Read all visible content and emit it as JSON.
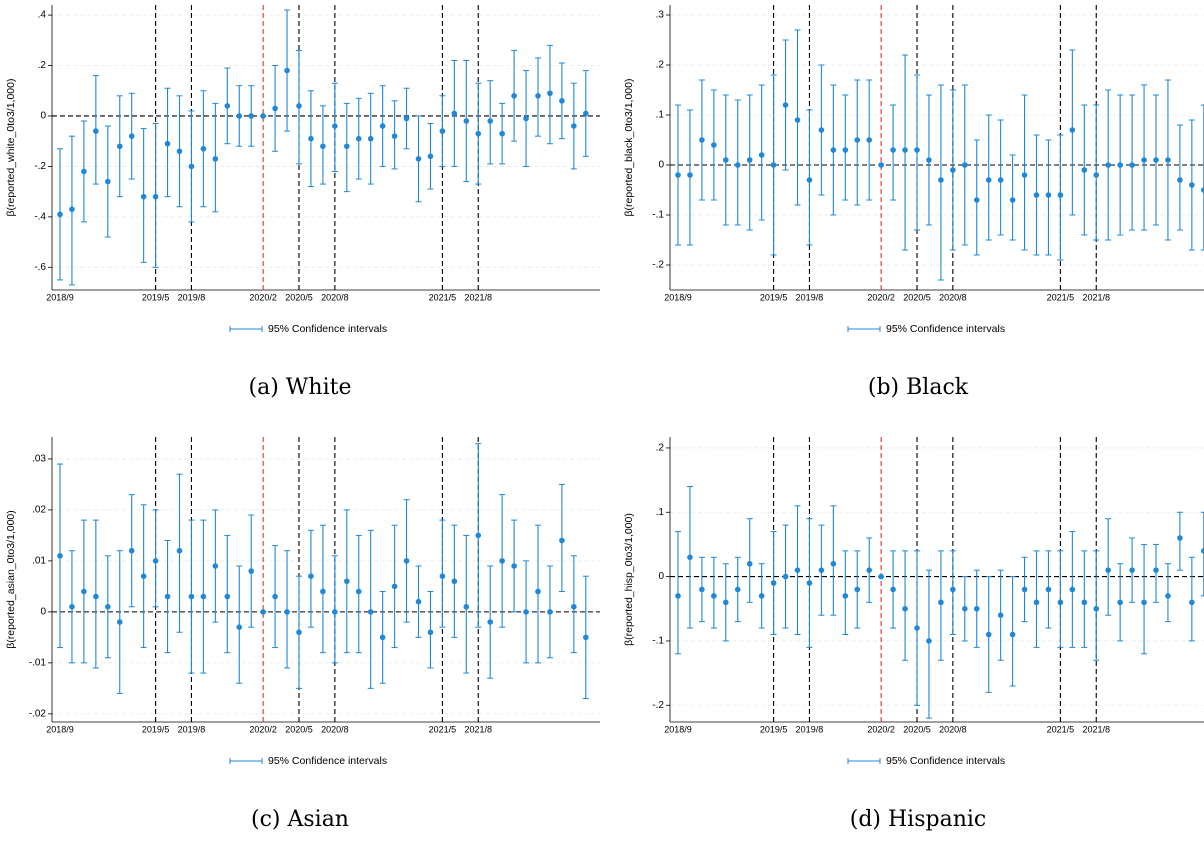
{
  "chart_data": [
    {
      "type": "errorbar",
      "caption": "(a) White",
      "y_label": "β(reported_white_0to3/1,000)",
      "categories": [
        "2018/9",
        null,
        null,
        null,
        null,
        null,
        null,
        null,
        "2019/5",
        null,
        null,
        "2019/8",
        null,
        null,
        null,
        null,
        null,
        "2020/2",
        null,
        null,
        "2020/5",
        null,
        null,
        "2020/8",
        null,
        null,
        null,
        null,
        null,
        null,
        null,
        null,
        "2021/5",
        null,
        null,
        "2021/8",
        null,
        null,
        null,
        null,
        null,
        null,
        null,
        null,
        null
      ],
      "series": [
        {
          "name": "95% Confidence intervals",
          "color": "#1f88d8",
          "values": [
            -0.39,
            -0.37,
            -0.22,
            -0.06,
            -0.26,
            -0.12,
            -0.08,
            -0.32,
            -0.32,
            -0.11,
            -0.14,
            -0.2,
            -0.13,
            -0.17,
            0.04,
            0,
            0,
            0,
            0.03,
            0.18,
            0.04,
            -0.09,
            -0.12,
            -0.04,
            -0.12,
            -0.09,
            -0.09,
            -0.04,
            -0.08,
            -0.01,
            -0.17,
            -0.16,
            -0.06,
            0.01,
            -0.02,
            -0.07,
            -0.02,
            -0.07,
            0.08,
            -0.01,
            0.08,
            0.09,
            0.06,
            -0.04,
            0.01
          ],
          "lower": [
            -0.65,
            -0.67,
            -0.42,
            -0.27,
            -0.48,
            -0.32,
            -0.25,
            -0.58,
            -0.6,
            -0.32,
            -0.36,
            -0.42,
            -0.36,
            -0.38,
            -0.11,
            -0.12,
            -0.12,
            0,
            -0.14,
            -0.06,
            -0.19,
            -0.28,
            -0.27,
            -0.22,
            -0.3,
            -0.25,
            -0.27,
            -0.2,
            -0.21,
            -0.13,
            -0.34,
            -0.29,
            -0.2,
            -0.2,
            -0.26,
            -0.27,
            -0.19,
            -0.19,
            -0.1,
            -0.2,
            -0.08,
            -0.11,
            -0.09,
            -0.21,
            -0.16
          ],
          "upper": [
            -0.13,
            -0.08,
            -0.02,
            0.16,
            -0.04,
            0.08,
            0.09,
            -0.05,
            -0.03,
            0.11,
            0.08,
            0.02,
            0.1,
            0.05,
            0.19,
            0.12,
            0.12,
            0,
            0.2,
            0.42,
            0.26,
            0.1,
            0.04,
            0.13,
            0.05,
            0.07,
            0.09,
            0.12,
            0.06,
            0.11,
            0,
            -0.03,
            0.08,
            0.22,
            0.22,
            0.13,
            0.14,
            0.05,
            0.26,
            0.18,
            0.23,
            0.28,
            0.21,
            0.13,
            0.18
          ]
        }
      ],
      "ylim": [
        -0.69,
        0.44
      ],
      "yticks": [
        {
          "value": -0.6,
          "label": "-.6"
        },
        {
          "value": -0.4,
          "label": "-.4"
        },
        {
          "value": -0.2,
          "label": "-.2"
        },
        0,
        {
          "value": 0.2,
          "label": ".2"
        },
        {
          "value": 0.4,
          "label": ".4"
        }
      ],
      "grid": true,
      "zero_line": true,
      "reference_lines": [
        {
          "x": "2019/5",
          "color": "#000000"
        },
        {
          "x": "2019/8",
          "color": "#000000"
        },
        {
          "x": "2020/2",
          "color": "#e3302b"
        },
        {
          "x": "2020/5",
          "color": "#000000"
        },
        {
          "x": "2020/8",
          "color": "#000000"
        },
        {
          "x": "2021/5",
          "color": "#000000"
        },
        {
          "x": "2021/8",
          "color": "#000000"
        }
      ]
    },
    {
      "type": "errorbar",
      "caption": "(b) Black",
      "y_label": "β(reported_black_0to3/1,000)",
      "categories": [
        "2018/9",
        null,
        null,
        null,
        null,
        null,
        null,
        null,
        "2019/5",
        null,
        null,
        "2019/8",
        null,
        null,
        null,
        null,
        null,
        "2020/2",
        null,
        null,
        "2020/5",
        null,
        null,
        "2020/8",
        null,
        null,
        null,
        null,
        null,
        null,
        null,
        null,
        "2021/5",
        null,
        null,
        "2021/8",
        null,
        null,
        null,
        null,
        null,
        null,
        null,
        null,
        null
      ],
      "series": [
        {
          "name": "95% Confidence intervals",
          "color": "#1f88d8",
          "values": [
            -0.02,
            -0.02,
            0.05,
            0.04,
            0.01,
            0,
            0.01,
            0.02,
            0,
            0.12,
            0.09,
            -0.03,
            0.07,
            0.03,
            0.03,
            0.05,
            0.05,
            0,
            0.03,
            0.03,
            0.03,
            0.01,
            -0.03,
            -0.01,
            0,
            -0.07,
            -0.03,
            -0.03,
            -0.07,
            -0.02,
            -0.06,
            -0.06,
            -0.06,
            0.07,
            -0.01,
            -0.02,
            0,
            0,
            0,
            0.01,
            0.01,
            0.01,
            -0.03,
            -0.04,
            -0.05
          ],
          "lower": [
            -0.16,
            -0.16,
            -0.07,
            -0.07,
            -0.12,
            -0.12,
            -0.13,
            -0.11,
            -0.18,
            -0.01,
            -0.08,
            -0.16,
            -0.06,
            -0.1,
            -0.07,
            -0.08,
            -0.07,
            0,
            -0.07,
            -0.17,
            -0.13,
            -0.12,
            -0.23,
            -0.17,
            -0.16,
            -0.18,
            -0.15,
            -0.14,
            -0.15,
            -0.17,
            -0.18,
            -0.18,
            -0.19,
            -0.1,
            -0.14,
            -0.15,
            -0.15,
            -0.14,
            -0.13,
            -0.13,
            -0.12,
            -0.15,
            -0.13,
            -0.17,
            -0.17
          ],
          "upper": [
            0.12,
            0.11,
            0.17,
            0.15,
            0.14,
            0.13,
            0.14,
            0.16,
            0.18,
            0.25,
            0.27,
            0.11,
            0.2,
            0.16,
            0.14,
            0.17,
            0.17,
            0,
            0.12,
            0.22,
            0.18,
            0.14,
            0.16,
            0.15,
            0.16,
            0.05,
            0.1,
            0.09,
            0.02,
            0.14,
            0.06,
            0.05,
            0.06,
            0.23,
            0.12,
            0.12,
            0.15,
            0.14,
            0.14,
            0.16,
            0.14,
            0.17,
            0.08,
            0.09,
            0.12
          ]
        }
      ],
      "ylim": [
        -0.25,
        0.32
      ],
      "yticks": [
        {
          "value": -0.2,
          "label": "-.2"
        },
        {
          "value": -0.1,
          "label": "-.1"
        },
        0,
        {
          "value": 0.1,
          "label": ".1"
        },
        {
          "value": 0.2,
          "label": ".2"
        },
        {
          "value": 0.3,
          "label": ".3"
        }
      ],
      "grid": true,
      "zero_line": true,
      "reference_lines": [
        {
          "x": "2019/5",
          "color": "#000000"
        },
        {
          "x": "2019/8",
          "color": "#000000"
        },
        {
          "x": "2020/2",
          "color": "#e3302b"
        },
        {
          "x": "2020/5",
          "color": "#000000"
        },
        {
          "x": "2020/8",
          "color": "#000000"
        },
        {
          "x": "2021/5",
          "color": "#000000"
        },
        {
          "x": "2021/8",
          "color": "#000000"
        }
      ]
    },
    {
      "type": "errorbar",
      "caption": "(c) Asian",
      "y_label": "β(reported_asian_0to3/1,000)",
      "categories": [
        "2018/9",
        null,
        null,
        null,
        null,
        null,
        null,
        null,
        "2019/5",
        null,
        null,
        "2019/8",
        null,
        null,
        null,
        null,
        null,
        "2020/2",
        null,
        null,
        "2020/5",
        null,
        null,
        "2020/8",
        null,
        null,
        null,
        null,
        null,
        null,
        null,
        null,
        "2021/5",
        null,
        null,
        "2021/8",
        null,
        null,
        null,
        null,
        null,
        null,
        null,
        null,
        null
      ],
      "series": [
        {
          "name": "95% Confidence intervals",
          "color": "#1f88d8",
          "values": [
            0.011,
            0.001,
            0.004,
            0.003,
            0.001,
            -0.002,
            0.012,
            0.007,
            0.01,
            0.003,
            0.012,
            0.003,
            0.003,
            0.009,
            0.003,
            -0.003,
            0.008,
            0,
            0.003,
            0,
            -0.004,
            0.007,
            0.004,
            0,
            0.006,
            0.004,
            0,
            -0.005,
            0.005,
            0.01,
            0.002,
            -0.004,
            0.007,
            0.006,
            0.001,
            0.015,
            -0.002,
            0.01,
            0.009,
            0,
            0.004,
            0,
            0.014,
            0.001,
            -0.005
          ],
          "lower": [
            -0.007,
            -0.01,
            -0.01,
            -0.011,
            -0.009,
            -0.016,
            0.001,
            -0.007,
            0.001,
            -0.008,
            -0.004,
            -0.012,
            -0.012,
            -0.002,
            -0.008,
            -0.014,
            -0.003,
            0,
            -0.007,
            -0.011,
            -0.015,
            -0.003,
            -0.008,
            -0.01,
            -0.008,
            -0.008,
            -0.015,
            -0.014,
            -0.007,
            -0.002,
            -0.005,
            -0.011,
            -0.003,
            -0.005,
            -0.012,
            -0.003,
            -0.013,
            -0.003,
            0,
            -0.01,
            -0.01,
            -0.009,
            0.004,
            -0.008,
            -0.017
          ],
          "upper": [
            0.029,
            0.012,
            0.018,
            0.018,
            0.011,
            0.012,
            0.023,
            0.021,
            0.02,
            0.014,
            0.027,
            0.018,
            0.018,
            0.02,
            0.015,
            0.009,
            0.019,
            0,
            0.013,
            0.012,
            0.007,
            0.016,
            0.017,
            0.011,
            0.02,
            0.015,
            0.016,
            0.004,
            0.017,
            0.022,
            0.009,
            0.004,
            0.018,
            0.017,
            0.015,
            0.033,
            0.009,
            0.023,
            0.018,
            0.01,
            0.017,
            0.009,
            0.025,
            0.011,
            0.007
          ]
        }
      ],
      "ylim": [
        -0.0216,
        0.0343
      ],
      "yticks": [
        {
          "value": -0.02,
          "label": "-.02"
        },
        {
          "value": -0.01,
          "label": "-.01"
        },
        0,
        {
          "value": 0.01,
          "label": ".01"
        },
        {
          "value": 0.02,
          "label": ".02"
        },
        {
          "value": 0.03,
          "label": ".03"
        }
      ],
      "grid": true,
      "zero_line": true,
      "reference_lines": [
        {
          "x": "2019/5",
          "color": "#000000"
        },
        {
          "x": "2019/8",
          "color": "#000000"
        },
        {
          "x": "2020/2",
          "color": "#e3302b"
        },
        {
          "x": "2020/5",
          "color": "#000000"
        },
        {
          "x": "2020/8",
          "color": "#000000"
        },
        {
          "x": "2021/5",
          "color": "#000000"
        },
        {
          "x": "2021/8",
          "color": "#000000"
        }
      ]
    },
    {
      "type": "errorbar",
      "caption": "(d) Hispanic",
      "y_label": "β(reported_hisp_0to3/1,000)",
      "categories": [
        "2018/9",
        null,
        null,
        null,
        null,
        null,
        null,
        null,
        "2019/5",
        null,
        null,
        "2019/8",
        null,
        null,
        null,
        null,
        null,
        "2020/2",
        null,
        null,
        "2020/5",
        null,
        null,
        "2020/8",
        null,
        null,
        null,
        null,
        null,
        null,
        null,
        null,
        "2021/5",
        null,
        null,
        "2021/8",
        null,
        null,
        null,
        null,
        null,
        null,
        null,
        null,
        null
      ],
      "series": [
        {
          "name": "95% Confidence intervals",
          "color": "#1f88d8",
          "values": [
            -0.03,
            0.03,
            -0.02,
            -0.03,
            -0.04,
            -0.02,
            0.02,
            -0.03,
            -0.01,
            0,
            0.01,
            -0.01,
            0.01,
            0.02,
            -0.03,
            -0.02,
            0.01,
            0,
            -0.02,
            -0.05,
            -0.08,
            -0.1,
            -0.04,
            -0.02,
            -0.05,
            -0.05,
            -0.09,
            -0.06,
            -0.09,
            -0.02,
            -0.04,
            -0.02,
            -0.04,
            -0.02,
            -0.04,
            -0.05,
            0.01,
            -0.04,
            0.01,
            -0.04,
            0.01,
            -0.03,
            0.06,
            -0.04,
            0.04
          ],
          "lower": [
            -0.12,
            -0.08,
            -0.07,
            -0.08,
            -0.1,
            -0.07,
            -0.04,
            -0.08,
            -0.09,
            -0.08,
            -0.09,
            -0.11,
            -0.06,
            -0.06,
            -0.09,
            -0.08,
            -0.04,
            0,
            -0.08,
            -0.13,
            -0.2,
            -0.22,
            -0.13,
            -0.09,
            -0.1,
            -0.11,
            -0.18,
            -0.13,
            -0.17,
            -0.07,
            -0.11,
            -0.08,
            -0.11,
            -0.11,
            -0.11,
            -0.13,
            -0.06,
            -0.1,
            -0.04,
            -0.12,
            -0.04,
            -0.07,
            0.01,
            -0.1,
            -0.03
          ],
          "upper": [
            0.07,
            0.14,
            0.03,
            0.03,
            0.02,
            0.03,
            0.09,
            0.02,
            0.07,
            0.08,
            0.11,
            0.09,
            0.08,
            0.11,
            0.04,
            0.04,
            0.06,
            0,
            0.04,
            0.04,
            0.04,
            0.01,
            0.04,
            0.04,
            0,
            0.01,
            0,
            0.01,
            0,
            0.03,
            0.04,
            0.04,
            0.04,
            0.07,
            0.04,
            0.04,
            0.09,
            0.02,
            0.06,
            0.05,
            0.05,
            0.02,
            0.1,
            0.03,
            0.1
          ]
        }
      ],
      "ylim": [
        -0.226,
        0.217
      ],
      "yticks": [
        {
          "value": -0.2,
          "label": "-.2"
        },
        {
          "value": -0.1,
          "label": "-.1"
        },
        0,
        {
          "value": 0.1,
          "label": ".1"
        },
        {
          "value": 0.2,
          "label": ".2"
        }
      ],
      "grid": true,
      "zero_line": true,
      "reference_lines": [
        {
          "x": "2019/5",
          "color": "#000000"
        },
        {
          "x": "2019/8",
          "color": "#000000"
        },
        {
          "x": "2020/2",
          "color": "#e3302b"
        },
        {
          "x": "2020/5",
          "color": "#000000"
        },
        {
          "x": "2020/8",
          "color": "#000000"
        },
        {
          "x": "2021/5",
          "color": "#000000"
        },
        {
          "x": "2021/8",
          "color": "#000000"
        }
      ]
    }
  ]
}
